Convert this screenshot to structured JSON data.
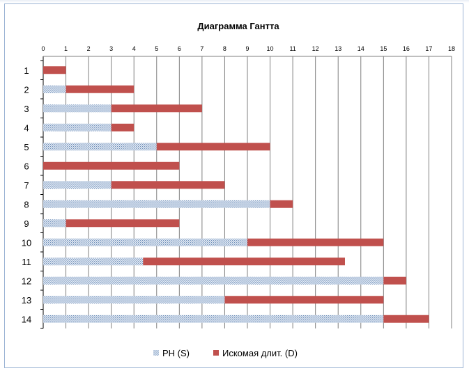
{
  "chart_data": {
    "type": "bar",
    "orientation": "horizontal",
    "stacked": true,
    "title": "Диаграмма  Гантта",
    "xlim": [
      0,
      18
    ],
    "x_ticks": [
      "0",
      "1",
      "2",
      "3",
      "4",
      "5",
      "6",
      "7",
      "8",
      "9",
      "10",
      "11",
      "12",
      "13",
      "14",
      "15",
      "16",
      "17",
      "18"
    ],
    "categories": [
      "1",
      "2",
      "3",
      "4",
      "5",
      "6",
      "7",
      "8",
      "9",
      "10",
      "11",
      "12",
      "13",
      "14"
    ],
    "series": [
      {
        "name": "РН (S)",
        "color": "#c5d3e8",
        "pattern": "dotted",
        "values": [
          0,
          1,
          3,
          3,
          5,
          0,
          3,
          10,
          1,
          9,
          4.4,
          15,
          8,
          15
        ]
      },
      {
        "name": "Искомая длит. (D)",
        "color": "#c0504d",
        "values": [
          1,
          3,
          4,
          1,
          5,
          6,
          5,
          1,
          5,
          6,
          8.9,
          1,
          7,
          2
        ]
      }
    ],
    "grid": "vertical",
    "legend": "bottom"
  }
}
